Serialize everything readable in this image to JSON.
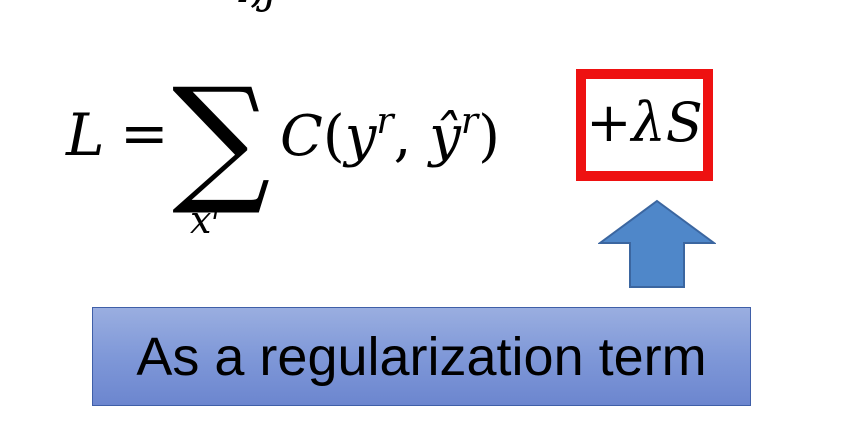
{
  "top_fragment": "i,j",
  "equation": {
    "lhs": "L",
    "equals": "=",
    "sum_symbol": "∑",
    "sum_sub_base": "x",
    "sum_sub_sup": "r",
    "func": "C",
    "open_paren": "(",
    "arg1_base": "y",
    "arg1_sup": "r",
    "comma": ",",
    "arg2_base": "ŷ",
    "arg2_sup": "r",
    "close_paren": ")"
  },
  "regularizer": {
    "plus": "+",
    "lambda_s": "λS",
    "box_color": "#ee1111"
  },
  "arrow": {
    "color": "#4f87c9",
    "stroke": "#3b66a0"
  },
  "banner": {
    "text": "As a regularization term",
    "color": "#8fa3dc"
  }
}
